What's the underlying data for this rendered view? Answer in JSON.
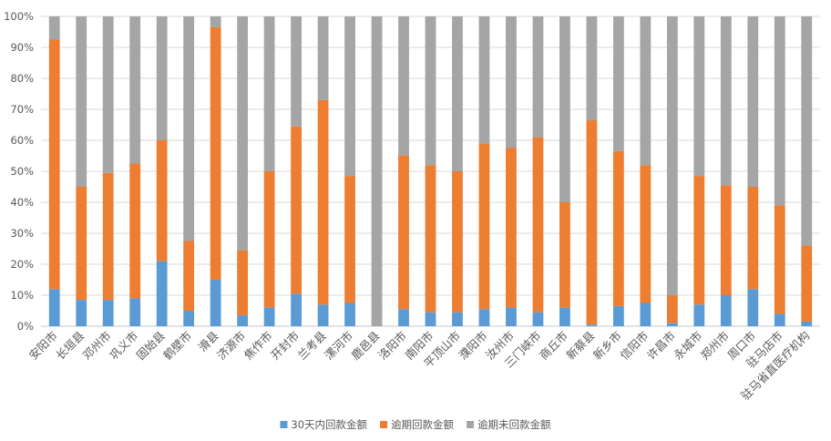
{
  "chart_data": {
    "type": "bar",
    "stacked": "percent",
    "categories": [
      "安阳市",
      "长垣县",
      "邓州市",
      "巩义市",
      "固始县",
      "鹤壁市",
      "滑县",
      "济源市",
      "焦作市",
      "开封市",
      "兰考县",
      "漯河市",
      "鹿邑县",
      "洛阳市",
      "南阳市",
      "平顶山市",
      "濮阳市",
      "汝州市",
      "三门峡市",
      "商丘市",
      "新蔡县",
      "新乡市",
      "信阳市",
      "许昌市",
      "永城市",
      "郑州市",
      "周口市",
      "驻马店市",
      "驻马省直医疗机构"
    ],
    "series": [
      {
        "name": "30天内回款金额",
        "color": "#5B9BD5",
        "values": [
          12,
          8.5,
          8.5,
          9,
          21,
          5,
          15,
          3.5,
          6,
          10.5,
          7,
          7.5,
          0,
          5.5,
          4.5,
          4.5,
          5.5,
          6,
          4.5,
          6,
          0.5,
          6.5,
          7.5,
          1,
          7,
          10,
          12,
          4,
          1.5
        ]
      },
      {
        "name": "逾期回款金额",
        "color": "#ED7D31",
        "values": [
          80.5,
          36.5,
          41,
          43.5,
          39,
          22.5,
          81.5,
          21,
          44,
          54,
          66,
          41,
          0,
          49.5,
          47.5,
          45.5,
          53.5,
          51.5,
          56.5,
          34,
          66,
          50,
          44.5,
          9,
          41.5,
          35.5,
          33,
          35,
          24.5
        ]
      },
      {
        "name": "逾期未回款金额",
        "color": "#A5A5A5",
        "values": [
          7.5,
          55,
          50.5,
          47.5,
          40,
          72.5,
          3.5,
          75.5,
          50,
          35.5,
          27,
          51.5,
          100,
          45,
          48,
          50,
          41,
          42.5,
          39,
          60,
          33.5,
          43.5,
          48,
          90,
          51.5,
          54.5,
          55,
          61,
          74
        ]
      }
    ],
    "yticks": [
      "0%",
      "10%",
      "20%",
      "30%",
      "40%",
      "50%",
      "60%",
      "70%",
      "80%",
      "90%",
      "100%"
    ],
    "ylim": [
      0,
      100
    ],
    "grid": true,
    "legend_position": "bottom"
  }
}
